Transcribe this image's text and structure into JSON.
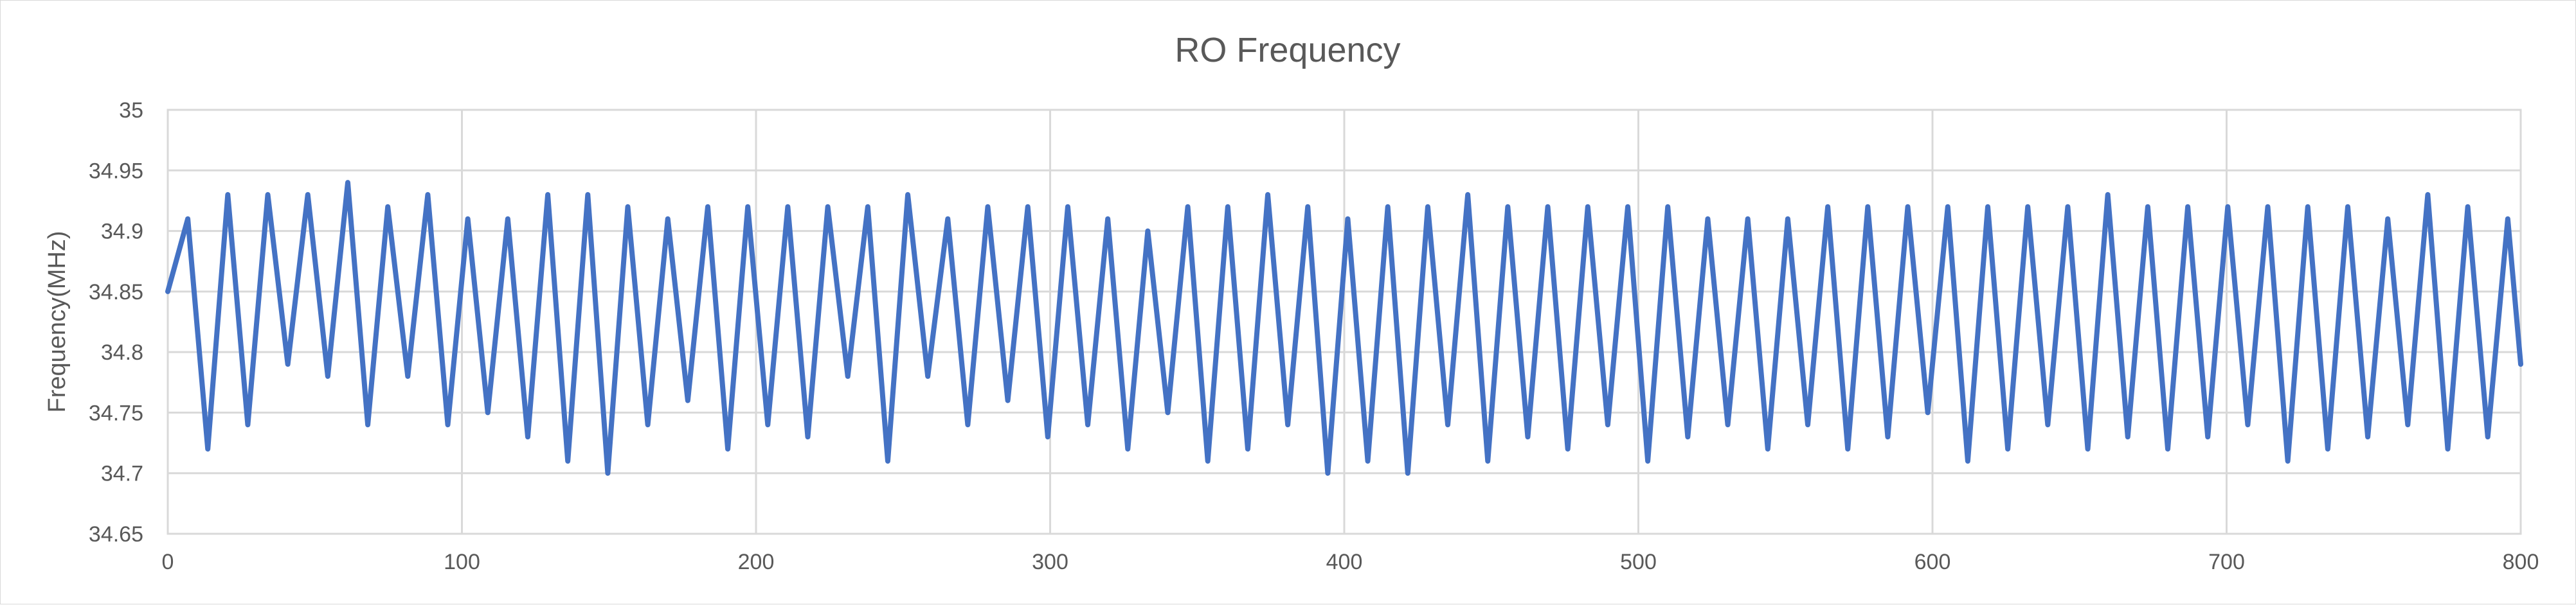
{
  "chart_data": {
    "type": "line",
    "title": "RO Frequency",
    "xlabel": "",
    "ylabel": "Frequency(MHz)",
    "xlim": [
      0,
      800
    ],
    "ylim": [
      34.65,
      35
    ],
    "x_ticks": [
      0,
      100,
      200,
      300,
      400,
      500,
      600,
      700,
      800
    ],
    "y_ticks": [
      34.65,
      34.7,
      34.75,
      34.8,
      34.85,
      34.9,
      34.95,
      35
    ],
    "y_tick_labels": [
      "34.65",
      "34.7",
      "34.75",
      "34.8",
      "34.85",
      "34.9",
      "34.95",
      "35"
    ],
    "grid": true,
    "legend": "none",
    "series": [
      {
        "color": "#4472c4",
        "x": [
          0,
          6.8,
          13.6,
          20.4,
          27.2,
          34.0,
          40.8,
          47.6,
          54.4,
          61.2,
          68.0,
          74.8,
          81.6,
          88.4,
          95.2,
          102.0,
          108.8,
          115.6,
          122.4,
          129.2,
          136.0,
          142.8,
          149.6,
          156.4,
          163.2,
          170.0,
          176.8,
          183.6,
          190.4,
          197.2,
          204.0,
          210.8,
          217.6,
          224.4,
          231.2,
          238.0,
          244.8,
          251.6,
          258.4,
          265.2,
          272.0,
          278.8,
          285.6,
          292.4,
          299.2,
          306.0,
          312.8,
          319.6,
          326.4,
          333.2,
          340.0,
          346.8,
          353.6,
          360.4,
          367.2,
          374.0,
          380.8,
          387.6,
          394.4,
          401.2,
          408.0,
          414.8,
          421.6,
          428.4,
          435.2,
          442.0,
          448.8,
          455.6,
          462.4,
          469.2,
          476.0,
          482.8,
          489.6,
          496.4,
          503.2,
          510.0,
          516.8,
          523.6,
          530.4,
          537.2,
          544.0,
          550.8,
          557.6,
          564.4,
          571.2,
          578.0,
          584.8,
          591.6,
          598.4,
          605.2,
          612.0,
          618.8,
          625.6,
          632.4,
          639.2,
          646.0,
          652.8,
          659.6,
          666.4,
          673.2,
          680.0,
          686.8,
          693.6,
          700.4,
          707.2,
          714.0,
          720.8,
          727.6,
          734.4,
          741.2,
          748.0,
          754.8,
          761.6,
          768.4,
          775.2,
          782.0,
          788.8,
          795.6,
          800
        ],
        "y": [
          34.85,
          34.91,
          34.72,
          34.93,
          34.74,
          34.93,
          34.79,
          34.93,
          34.78,
          34.94,
          34.74,
          34.92,
          34.78,
          34.93,
          34.74,
          34.91,
          34.75,
          34.91,
          34.73,
          34.93,
          34.71,
          34.93,
          34.7,
          34.92,
          34.74,
          34.91,
          34.76,
          34.92,
          34.72,
          34.92,
          34.74,
          34.92,
          34.73,
          34.92,
          34.78,
          34.92,
          34.71,
          34.93,
          34.78,
          34.91,
          34.74,
          34.92,
          34.76,
          34.92,
          34.73,
          34.92,
          34.74,
          34.91,
          34.72,
          34.9,
          34.75,
          34.92,
          34.71,
          34.92,
          34.72,
          34.93,
          34.74,
          34.92,
          34.7,
          34.91,
          34.71,
          34.92,
          34.7,
          34.92,
          34.74,
          34.93,
          34.71,
          34.92,
          34.73,
          34.92,
          34.72,
          34.92,
          34.74,
          34.92,
          34.71,
          34.92,
          34.73,
          34.91,
          34.74,
          34.91,
          34.72,
          34.91,
          34.74,
          34.92,
          34.72,
          34.92,
          34.73,
          34.92,
          34.75,
          34.92,
          34.71,
          34.92,
          34.72,
          34.92,
          34.74,
          34.92,
          34.72,
          34.93,
          34.73,
          34.92,
          34.72,
          34.92,
          34.73,
          34.92,
          34.74,
          34.92,
          34.71,
          34.92,
          34.72,
          34.92,
          34.73,
          34.91,
          34.74,
          34.93,
          34.72,
          34.92,
          34.73,
          34.91,
          34.79
        ]
      }
    ]
  }
}
